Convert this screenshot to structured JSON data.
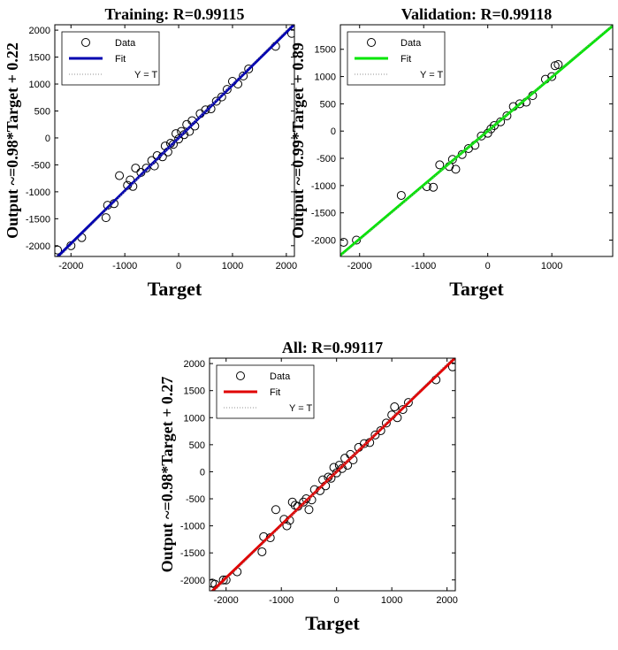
{
  "chart_data": [
    {
      "type": "scatter",
      "title": "Training: R=0.99115",
      "xlabel": "Target",
      "ylabel": "Output ~=0.98*Target + 0.22",
      "xlim": [
        -2300,
        2150
      ],
      "ylim": [
        -2200,
        2100
      ],
      "xticks": [
        -2000,
        -1000,
        0,
        1000,
        2000
      ],
      "yticks": [
        -2000,
        -1500,
        -1000,
        -500,
        0,
        500,
        1000,
        1500,
        2000
      ],
      "legend": "top-left",
      "series": [
        {
          "name": "Data",
          "color": "#000000",
          "mode": "markers",
          "x": [
            -2250,
            -2000,
            -1800,
            -1350,
            -1320,
            -1200,
            -1100,
            -950,
            -900,
            -850,
            -800,
            -700,
            -600,
            -500,
            -450,
            -400,
            -300,
            -250,
            -200,
            -150,
            -100,
            -50,
            0,
            50,
            100,
            150,
            200,
            250,
            300,
            400,
            500,
            600,
            700,
            800,
            900,
            1000,
            1100,
            1200,
            1300,
            1800,
            2100
          ],
          "values": [
            -2080,
            -2000,
            -1850,
            -1480,
            -1250,
            -1220,
            -700,
            -880,
            -780,
            -900,
            -560,
            -640,
            -560,
            -420,
            -520,
            -330,
            -350,
            -150,
            -260,
            -100,
            -120,
            80,
            -20,
            120,
            60,
            250,
            120,
            320,
            220,
            450,
            520,
            540,
            680,
            760,
            900,
            1050,
            1000,
            1150,
            1280,
            1700,
            1940
          ]
        },
        {
          "name": "Fit",
          "color": "#0000b0",
          "mode": "line",
          "x": [
            -2300,
            2150
          ],
          "values": [
            -2253.8,
            2107.2
          ]
        },
        {
          "name": "Y = T",
          "color": "#909090",
          "mode": "dotted",
          "x": [
            -2300,
            2150
          ],
          "values": [
            -2300,
            2150
          ]
        }
      ]
    },
    {
      "type": "scatter",
      "title": "Validation: R=0.99118",
      "xlabel": "Target",
      "ylabel": "Output ~=0.99*Target + 0.89",
      "xlim": [
        -2300,
        1950
      ],
      "ylim": [
        -2300,
        1950
      ],
      "xticks": [
        -2000,
        -1000,
        0,
        1000
      ],
      "yticks": [
        -2000,
        -1500,
        -1000,
        -500,
        0,
        500,
        1000,
        1500
      ],
      "legend": "top-left",
      "series": [
        {
          "name": "Data",
          "color": "#000000",
          "mode": "markers",
          "x": [
            -2250,
            -2050,
            -1350,
            -950,
            -850,
            -750,
            -600,
            -550,
            -500,
            -400,
            -300,
            -200,
            -100,
            0,
            50,
            100,
            200,
            300,
            400,
            500,
            600,
            700,
            900,
            1000,
            1050,
            1100
          ],
          "values": [
            -2040,
            -2000,
            -1180,
            -1020,
            -1030,
            -620,
            -650,
            -520,
            -700,
            -430,
            -320,
            -260,
            -90,
            -40,
            40,
            100,
            170,
            280,
            450,
            500,
            530,
            650,
            950,
            1000,
            1200,
            1220
          ]
        },
        {
          "name": "Fit",
          "color": "#00e600",
          "mode": "line",
          "x": [
            -2300,
            1950
          ],
          "values": [
            -2276.1,
            1931.4
          ]
        },
        {
          "name": "Y = T",
          "color": "#909090",
          "mode": "dotted",
          "x": [
            -2300,
            1950
          ],
          "values": [
            -2300,
            1950
          ]
        }
      ]
    },
    {
      "type": "scatter",
      "title": "All: R=0.99117",
      "xlabel": "Target",
      "ylabel": "Output ~=0.98*Target + 0.27",
      "xlim": [
        -2300,
        2150
      ],
      "ylim": [
        -2200,
        2100
      ],
      "xticks": [
        -2000,
        -1000,
        0,
        1000,
        2000
      ],
      "yticks": [
        -2000,
        -1500,
        -1000,
        -500,
        0,
        500,
        1000,
        1500,
        2000
      ],
      "legend": "top-left",
      "series": [
        {
          "name": "Data",
          "color": "#000000",
          "mode": "markers",
          "x": [
            -2250,
            -2200,
            -2050,
            -2000,
            -1800,
            -1350,
            -1320,
            -1200,
            -1100,
            -950,
            -900,
            -850,
            -800,
            -750,
            -700,
            -600,
            -550,
            -500,
            -450,
            -400,
            -300,
            -250,
            -200,
            -150,
            -100,
            -50,
            0,
            50,
            100,
            150,
            200,
            250,
            300,
            400,
            500,
            600,
            700,
            800,
            900,
            1000,
            1050,
            1100,
            1200,
            1300,
            1800,
            2100
          ],
          "values": [
            -2060,
            -2080,
            -2000,
            -2000,
            -1850,
            -1480,
            -1200,
            -1220,
            -700,
            -880,
            -1000,
            -900,
            -560,
            -620,
            -640,
            -560,
            -500,
            -700,
            -520,
            -330,
            -350,
            -150,
            -260,
            -100,
            -120,
            80,
            -20,
            120,
            60,
            250,
            120,
            320,
            220,
            450,
            520,
            540,
            680,
            760,
            900,
            1050,
            1200,
            1000,
            1150,
            1280,
            1700,
            1940
          ]
        },
        {
          "name": "Fit",
          "color": "#e00000",
          "mode": "line",
          "x": [
            -2300,
            2150
          ],
          "values": [
            -2253.7,
            2107.3
          ]
        },
        {
          "name": "Y = T",
          "color": "#909090",
          "mode": "dotted",
          "x": [
            -2300,
            2150
          ],
          "values": [
            -2300,
            2150
          ]
        }
      ]
    }
  ]
}
